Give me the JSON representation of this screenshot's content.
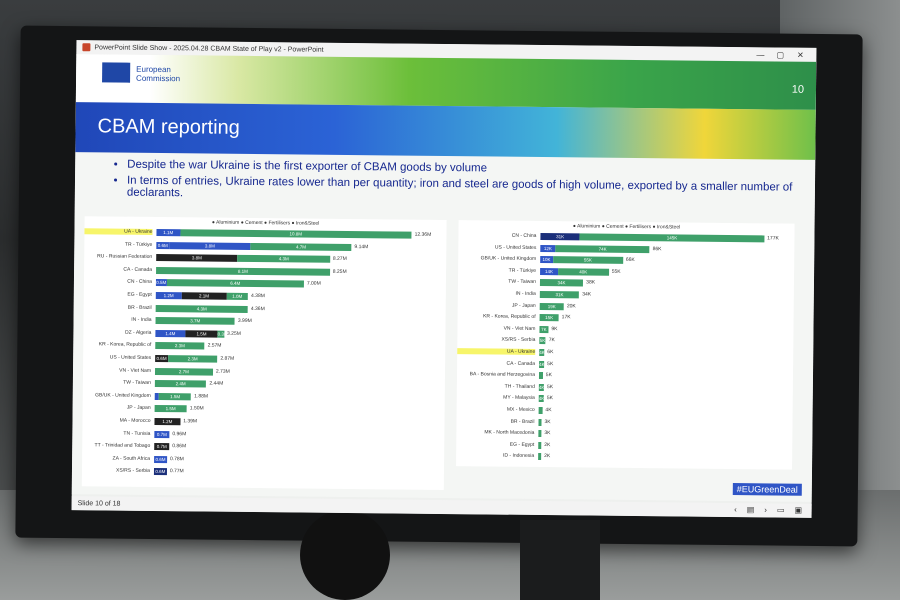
{
  "window": {
    "title": "PowerPoint Slide Show - 2025.04.28 CBAM State of Play v2 - PowerPoint",
    "controls": [
      "—",
      "▢",
      "✕"
    ]
  },
  "slide": {
    "org_line1": "European",
    "org_line2": "Commission",
    "page": "10",
    "title": "CBAM reporting",
    "bullets": [
      "Despite the war Ukraine is the first exporter of CBAM goods by volume",
      "In terms of entries, Ukraine rates lower than per quantity; iron and steel are goods of high volume, exported by a smaller number of declarants."
    ],
    "hashtag": "#EUGreenDeal"
  },
  "colors": {
    "aluminium": "#2f55c6",
    "cement": "#222222",
    "fertilisers": "#1b2f7a",
    "iron_steel": "#3fa06a"
  },
  "charts": {
    "left": {
      "legend": "● Aluminium ● Cement ● Fertilisers ● Iron&Steel",
      "rows": [
        {
          "label": "UA - Ukraine",
          "total": "12.36M",
          "segs": [
            {
              "c": "aluminium",
              "v": 1.1,
              "t": "1.1M"
            },
            {
              "c": "iron_steel",
              "v": 10.8,
              "t": "10.8M"
            }
          ],
          "highlight": true
        },
        {
          "label": "TR - Türkiye",
          "total": "9.14M",
          "segs": [
            {
              "c": "aluminium",
              "v": 0.6,
              "t": "0.6M"
            },
            {
              "c": "aluminium",
              "v": 3.8,
              "t": "3.8M"
            },
            {
              "c": "iron_steel",
              "v": 4.7,
              "t": "4.7M"
            }
          ]
        },
        {
          "label": "RU - Russian Federation",
          "total": "8.27M",
          "segs": [
            {
              "c": "cement",
              "v": 3.8,
              "t": "3.8M"
            },
            {
              "c": "iron_steel",
              "v": 4.3,
              "t": "4.3M"
            }
          ]
        },
        {
          "label": "CA - Canada",
          "total": "8.25M",
          "segs": [
            {
              "c": "iron_steel",
              "v": 8.1,
              "t": "8.1M"
            }
          ]
        },
        {
          "label": "CN - China",
          "total": "7.00M",
          "segs": [
            {
              "c": "aluminium",
              "v": 0.5,
              "t": "0.5M"
            },
            {
              "c": "iron_steel",
              "v": 6.4,
              "t": "6.4M"
            }
          ]
        },
        {
          "label": "EG - Egypt",
          "total": "4.38M",
          "segs": [
            {
              "c": "aluminium",
              "v": 1.2,
              "t": "1.2M"
            },
            {
              "c": "cement",
              "v": 2.1,
              "t": "2.1M"
            },
            {
              "c": "iron_steel",
              "v": 1.0,
              "t": "1.0M"
            }
          ]
        },
        {
          "label": "BR - Brazil",
          "total": "4.36M",
          "segs": [
            {
              "c": "iron_steel",
              "v": 4.3,
              "t": "4.3M"
            }
          ]
        },
        {
          "label": "IN - India",
          "total": "3.99M",
          "segs": [
            {
              "c": "iron_steel",
              "v": 3.7,
              "t": "3.7M"
            }
          ]
        },
        {
          "label": "DZ - Algeria",
          "total": "3.25M",
          "segs": [
            {
              "c": "aluminium",
              "v": 1.4,
              "t": "1.4M"
            },
            {
              "c": "cement",
              "v": 1.5,
              "t": "1.5M"
            },
            {
              "c": "iron_steel",
              "v": 0.3,
              "t": "0.3M"
            }
          ]
        },
        {
          "label": "KR - Korea, Republic of",
          "total": "2.57M",
          "segs": [
            {
              "c": "iron_steel",
              "v": 2.3,
              "t": "2.3M"
            }
          ]
        },
        {
          "label": "US - United States",
          "total": "2.87M",
          "segs": [
            {
              "c": "cement",
              "v": 0.6,
              "t": "0.6M"
            },
            {
              "c": "iron_steel",
              "v": 2.3,
              "t": "2.3M"
            }
          ]
        },
        {
          "label": "VN - Viet Nam",
          "total": "2.73M",
          "segs": [
            {
              "c": "iron_steel",
              "v": 2.7,
              "t": "2.7M"
            }
          ]
        },
        {
          "label": "TW - Taiwan",
          "total": "2.44M",
          "segs": [
            {
              "c": "iron_steel",
              "v": 2.4,
              "t": "2.4M"
            }
          ]
        },
        {
          "label": "GB/UK - United Kingdom",
          "total": "1.88M",
          "segs": [
            {
              "c": "aluminium",
              "v": 0.2,
              "t": ""
            },
            {
              "c": "iron_steel",
              "v": 1.5,
              "t": "1.5M"
            }
          ]
        },
        {
          "label": "JP - Japan",
          "total": "1.50M",
          "segs": [
            {
              "c": "iron_steel",
              "v": 1.5,
              "t": "1.5M"
            }
          ]
        },
        {
          "label": "MA - Morocco",
          "total": "1.39M",
          "segs": [
            {
              "c": "cement",
              "v": 1.2,
              "t": "1.2M"
            }
          ]
        },
        {
          "label": "TN - Tunisia",
          "total": "0.96M",
          "segs": [
            {
              "c": "aluminium",
              "v": 0.7,
              "t": "0.7M"
            }
          ]
        },
        {
          "label": "TT - Trinidad and Tobago",
          "total": "0.86M",
          "segs": [
            {
              "c": "cement",
              "v": 0.7,
              "t": "0.7M"
            }
          ]
        },
        {
          "label": "ZA - South Africa",
          "total": "0.78M",
          "segs": [
            {
              "c": "aluminium",
              "v": 0.6,
              "t": "0.6M"
            }
          ]
        },
        {
          "label": "XS/RS - Serbia",
          "total": "0.77M",
          "segs": [
            {
              "c": "fertilisers",
              "v": 0.6,
              "t": "0.6M"
            }
          ]
        }
      ],
      "max": 12.36
    },
    "right": {
      "legend": "● Aluminium ● Cement ● Fertilisers ● Iron&Steel",
      "rows": [
        {
          "label": "CN - China",
          "total": "177K",
          "segs": [
            {
              "c": "fertilisers",
              "v": 31,
              "t": "31K"
            },
            {
              "c": "iron_steel",
              "v": 145,
              "t": "145K"
            }
          ]
        },
        {
          "label": "US - United States",
          "total": "86K",
          "segs": [
            {
              "c": "aluminium",
              "v": 12,
              "t": "12K"
            },
            {
              "c": "iron_steel",
              "v": 74,
              "t": "74K"
            }
          ]
        },
        {
          "label": "GB/UK - United Kingdom",
          "total": "66K",
          "segs": [
            {
              "c": "aluminium",
              "v": 10,
              "t": "10K"
            },
            {
              "c": "iron_steel",
              "v": 55,
              "t": "55K"
            }
          ]
        },
        {
          "label": "TR - Türkiye",
          "total": "55K",
          "segs": [
            {
              "c": "aluminium",
              "v": 14,
              "t": "14K"
            },
            {
              "c": "iron_steel",
              "v": 40,
              "t": "40K"
            }
          ]
        },
        {
          "label": "TW - Taiwan",
          "total": "38K",
          "segs": [
            {
              "c": "iron_steel",
              "v": 34,
              "t": "34K"
            }
          ]
        },
        {
          "label": "IN - India",
          "total": "34K",
          "segs": [
            {
              "c": "iron_steel",
              "v": 31,
              "t": "31K"
            }
          ]
        },
        {
          "label": "JP - Japan",
          "total": "20K",
          "segs": [
            {
              "c": "iron_steel",
              "v": 19,
              "t": "19K"
            }
          ]
        },
        {
          "label": "KR - Korea, Republic of",
          "total": "17K",
          "segs": [
            {
              "c": "iron_steel",
              "v": 15,
              "t": "15K"
            }
          ]
        },
        {
          "label": "VN - Viet Nam",
          "total": "9K",
          "segs": [
            {
              "c": "iron_steel",
              "v": 7,
              "t": "7K"
            }
          ]
        },
        {
          "label": "XS/RS - Serbia",
          "total": "7K",
          "segs": [
            {
              "c": "iron_steel",
              "v": 5,
              "t": "5K"
            }
          ]
        },
        {
          "label": "UA - Ukraine",
          "total": "6K",
          "segs": [
            {
              "c": "iron_steel",
              "v": 4,
              "t": "4K"
            }
          ],
          "highlight": true
        },
        {
          "label": "CA - Canada",
          "total": "5K",
          "segs": [
            {
              "c": "iron_steel",
              "v": 4,
              "t": "4K"
            }
          ]
        },
        {
          "label": "BA - Bosnia and Herzegovina",
          "total": "5K",
          "segs": [
            {
              "c": "iron_steel",
              "v": 3,
              "t": ""
            }
          ]
        },
        {
          "label": "TH - Thailand",
          "total": "5K",
          "segs": [
            {
              "c": "iron_steel",
              "v": 4,
              "t": "4K"
            }
          ]
        },
        {
          "label": "MY - Malaysia",
          "total": "5K",
          "segs": [
            {
              "c": "iron_steel",
              "v": 4,
              "t": "4K"
            }
          ]
        },
        {
          "label": "MX - Mexico",
          "total": "4K",
          "segs": [
            {
              "c": "iron_steel",
              "v": 3,
              "t": ""
            }
          ]
        },
        {
          "label": "BR - Brazil",
          "total": "3K",
          "segs": [
            {
              "c": "iron_steel",
              "v": 2,
              "t": ""
            }
          ]
        },
        {
          "label": "MK - North Macedonia",
          "total": "3K",
          "segs": [
            {
              "c": "iron_steel",
              "v": 2,
              "t": ""
            }
          ]
        },
        {
          "label": "EG - Egypt",
          "total": "2K",
          "segs": [
            {
              "c": "iron_steel",
              "v": 2,
              "t": ""
            }
          ]
        },
        {
          "label": "ID - Indonesia",
          "total": "2K",
          "segs": [
            {
              "c": "iron_steel",
              "v": 1,
              "t": ""
            }
          ]
        }
      ],
      "max": 177
    }
  },
  "status": {
    "slide": "Slide 10 of 18"
  }
}
